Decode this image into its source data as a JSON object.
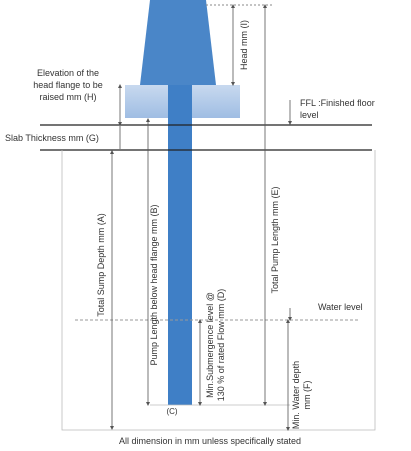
{
  "labels": {
    "head": "Head mm (I)",
    "elevation": [
      "Elevation of the",
      "head flange to be",
      "raised mm (H)"
    ],
    "ffl": [
      "FFL :Finished floor",
      "level"
    ],
    "slab": "Slab Thickness mm (G)",
    "sump_depth": "Total Sump Depth mm (A)",
    "pump_length": "Pump Length below head flange mm (B)",
    "submergence": [
      "Min.Submergence    level @",
      "130 % of rated Flow mm (D)"
    ],
    "total_pump_length": "Total Pump Length  mm (E)",
    "water_level": "Water level",
    "water_depth": [
      "Min. Water depth",
      "mm (F)"
    ],
    "c": "(C)"
  },
  "footer": "All dimension in mm unless specifically stated"
}
